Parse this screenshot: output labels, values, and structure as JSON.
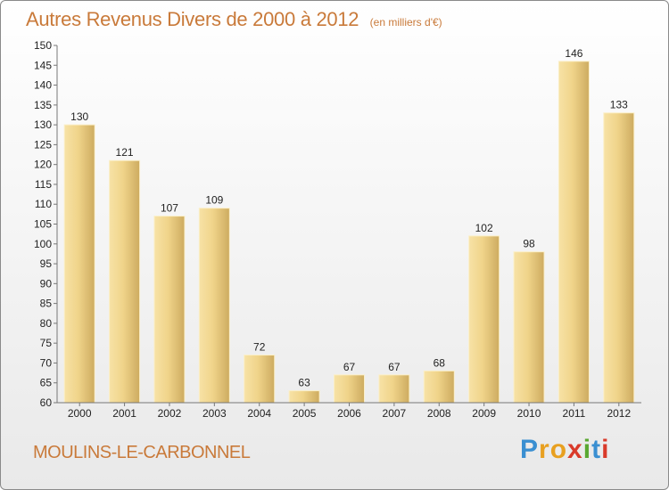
{
  "title": "Autres Revenus Divers de 2000 à 2012",
  "subtitle": "(en milliers d'€)",
  "commune": "MOULINS-LE-CARBONNEL",
  "brand": {
    "letters": [
      "P",
      "r",
      "o",
      "x",
      "i",
      "t",
      "i"
    ],
    "colors": [
      "#3a8fd1",
      "#e8a020",
      "#e8a020",
      "#d93a2a",
      "#5aa832",
      "#3a8fd1",
      "#d93a2a"
    ]
  },
  "colors": {
    "bar_light": "#f5dc9a",
    "bar_dark": "#c9a65a",
    "title": "#c97a3a"
  },
  "chart_data": {
    "type": "bar",
    "categories": [
      "2000",
      "2001",
      "2002",
      "2003",
      "2004",
      "2005",
      "2006",
      "2007",
      "2008",
      "2009",
      "2010",
      "2011",
      "2012"
    ],
    "values": [
      130,
      121,
      107,
      109,
      72,
      63,
      67,
      67,
      68,
      102,
      98,
      146,
      133
    ],
    "ylim": [
      60,
      150
    ],
    "yticks": [
      60,
      65,
      70,
      75,
      80,
      85,
      90,
      95,
      100,
      105,
      110,
      115,
      120,
      125,
      130,
      135,
      140,
      145,
      150
    ],
    "grid": false,
    "data_labels": true
  }
}
